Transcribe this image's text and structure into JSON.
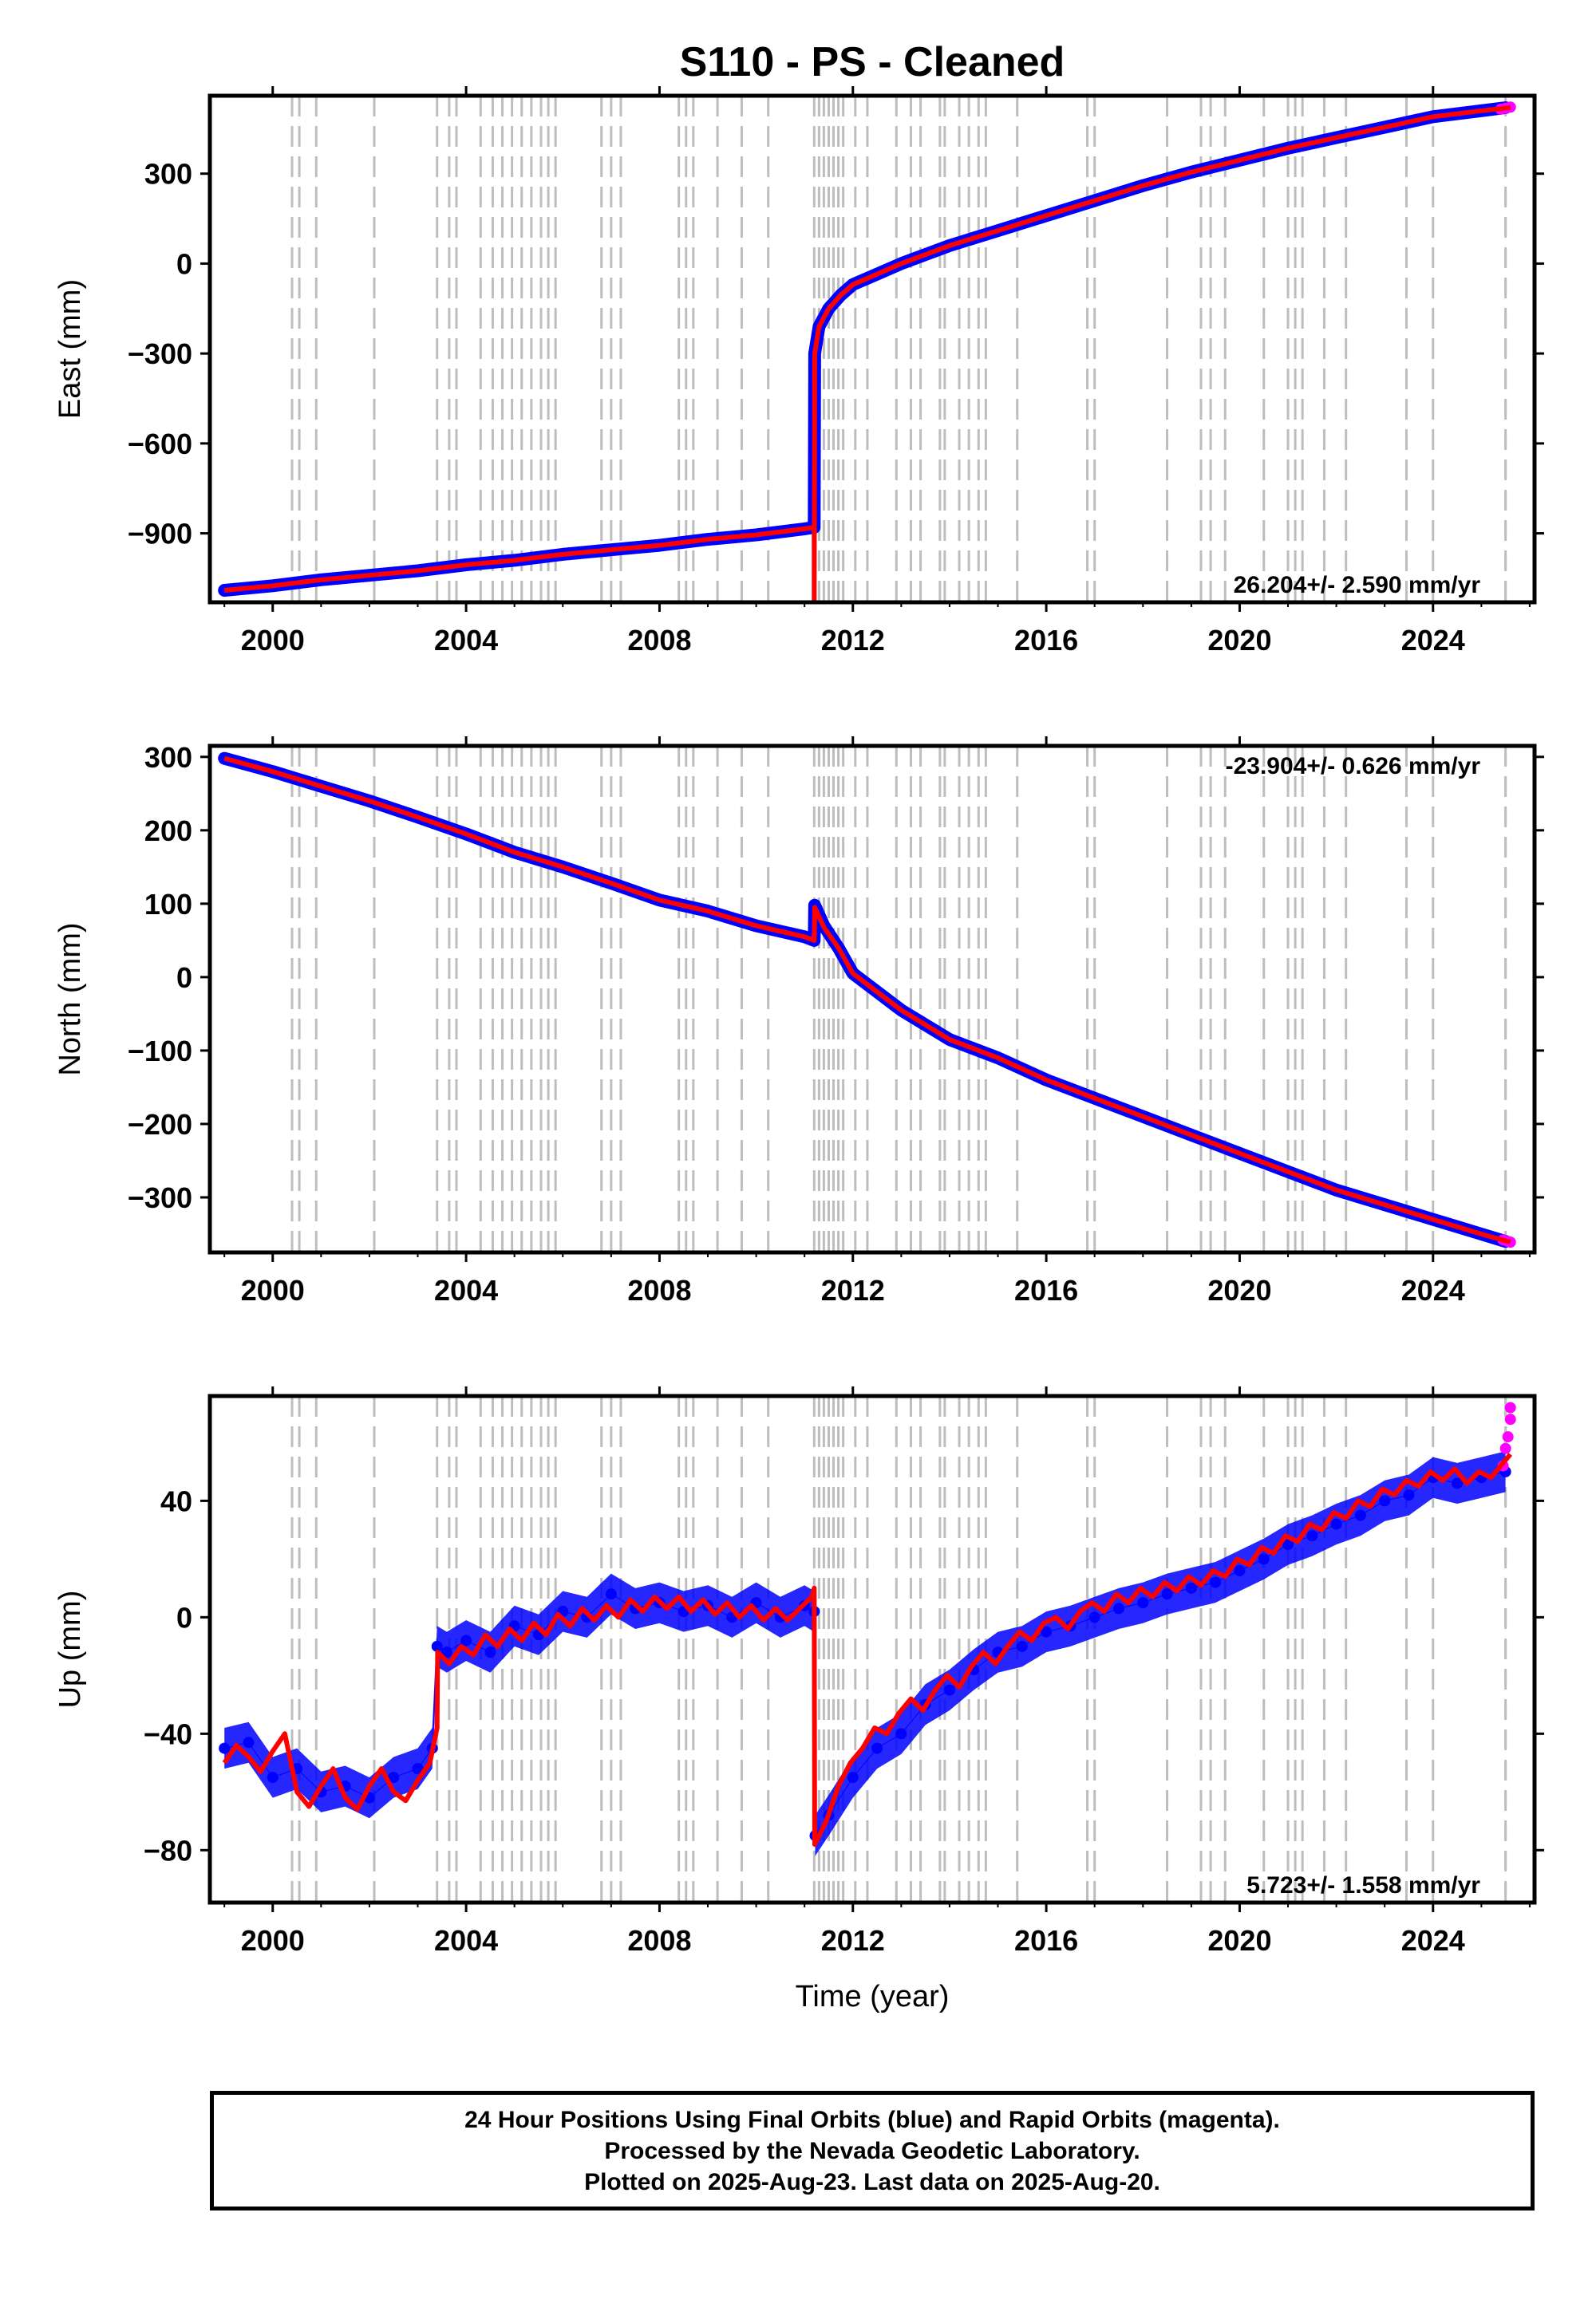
{
  "chart_data": {
    "type": "scatter",
    "title": "S110  - PS - Cleaned",
    "xlabel": "Time (year)",
    "xlim": [
      1998.7,
      2026.1
    ],
    "x_ticks": [
      2000,
      2004,
      2008,
      2012,
      2016,
      2020,
      2024
    ],
    "x_tick_labels": [
      "2000",
      "2004",
      "2008",
      "2012",
      "2016",
      "2020",
      "2024"
    ],
    "event_lines": [
      2000.4,
      2000.55,
      2000.9,
      2002.1,
      2003.4,
      2003.65,
      2003.8,
      2004.3,
      2004.55,
      2004.75,
      2004.95,
      2005.15,
      2005.35,
      2005.55,
      2005.7,
      2005.85,
      2006.8,
      2007.0,
      2007.2,
      2008.4,
      2008.55,
      2008.7,
      2009.2,
      2009.7,
      2010.25,
      2011.2,
      2011.3,
      2011.4,
      2011.5,
      2011.6,
      2011.7,
      2011.8,
      2012.05,
      2012.3,
      2012.9,
      2013.2,
      2013.4,
      2013.8,
      2013.9,
      2014.2,
      2014.4,
      2014.6,
      2014.75,
      2015.4,
      2016.85,
      2017.0,
      2018.5,
      2019.2,
      2019.4,
      2019.7,
      2020.5,
      2021.0,
      2021.15,
      2021.3,
      2021.75,
      2022.2,
      2023.45,
      2024.0,
      2025.5
    ],
    "panels": [
      {
        "name": "east",
        "ylabel": "East (mm)",
        "ylim": [
          -1130,
          560
        ],
        "y_ticks": [
          -900,
          -600,
          -300,
          0,
          300
        ],
        "y_tick_labels": [
          "−900",
          "−600",
          "−300",
          "0",
          "300"
        ],
        "rate": "26.204+/- 2.590 mm/yr",
        "rate_position": "bottom-right",
        "series": [
          {
            "name": "Final Orbits",
            "color": "#0000ff",
            "x": [
              1999.0,
              2000.0,
              2001.0,
              2002.0,
              2003.0,
              2004.0,
              2005.0,
              2006.0,
              2007.0,
              2008.0,
              2009.0,
              2010.0,
              2011.0,
              2011.2,
              2011.21,
              2011.3,
              2011.5,
              2011.75,
              2012.0,
              2012.5,
              2013.0,
              2014.0,
              2015.0,
              2016.0,
              2017.0,
              2018.0,
              2019.0,
              2020.0,
              2021.0,
              2022.0,
              2023.0,
              2024.0,
              2025.0,
              2025.5
            ],
            "y": [
              -1090,
              -1075,
              -1055,
              -1040,
              -1025,
              -1005,
              -990,
              -970,
              -955,
              -940,
              -920,
              -905,
              -885,
              -880,
              -300,
              -210,
              -150,
              -105,
              -70,
              -35,
              0,
              60,
              110,
              160,
              210,
              260,
              305,
              345,
              385,
              420,
              455,
              490,
              510,
              520
            ]
          },
          {
            "name": "Rapid Orbits",
            "color": "#ff00ff",
            "x": [
              2025.4,
              2025.5,
              2025.6
            ],
            "y": [
              515,
              518,
              522
            ]
          },
          {
            "name": "Model",
            "color": "#ff0000",
            "x": [
              1999.0,
              2000.0,
              2001.0,
              2002.0,
              2003.0,
              2004.0,
              2005.0,
              2006.0,
              2007.0,
              2008.0,
              2009.0,
              2010.0,
              2011.0,
              2011.2,
              2011.2,
              2011.21,
              2011.3,
              2011.5,
              2011.75,
              2012.0,
              2012.5,
              2013.0,
              2014.0,
              2015.0,
              2016.0,
              2017.0,
              2018.0,
              2019.0,
              2020.0,
              2021.0,
              2022.0,
              2023.0,
              2024.0,
              2025.0,
              2025.6
            ],
            "y": [
              -1090,
              -1075,
              -1055,
              -1040,
              -1025,
              -1005,
              -990,
              -970,
              -955,
              -940,
              -920,
              -905,
              -885,
              -880,
              -1130,
              -300,
              -210,
              -150,
              -105,
              -70,
              -35,
              0,
              60,
              110,
              160,
              210,
              260,
              305,
              345,
              385,
              420,
              455,
              490,
              510,
              520
            ]
          }
        ]
      },
      {
        "name": "north",
        "ylabel": "North (mm)",
        "ylim": [
          -375,
          315
        ],
        "y_ticks": [
          -300,
          -200,
          -100,
          0,
          100,
          200,
          300
        ],
        "y_tick_labels": [
          "−300",
          "−200",
          "−100",
          "0",
          "100",
          "200",
          "300"
        ],
        "rate": "-23.904+/- 0.626 mm/yr",
        "rate_position": "top-right",
        "series": [
          {
            "name": "Final Orbits",
            "color": "#0000ff",
            "x": [
              1999.0,
              2000.0,
              2001.0,
              2002.0,
              2003.0,
              2004.0,
              2005.0,
              2006.0,
              2007.0,
              2008.0,
              2009.0,
              2010.0,
              2011.0,
              2011.2,
              2011.21,
              2011.4,
              2011.7,
              2012.0,
              2013.0,
              2014.0,
              2015.0,
              2016.0,
              2017.0,
              2018.0,
              2019.0,
              2020.0,
              2021.0,
              2022.0,
              2023.0,
              2024.0,
              2025.0,
              2025.5
            ],
            "y": [
              298,
              280,
              260,
              240,
              218,
              195,
              170,
              150,
              128,
              105,
              90,
              70,
              55,
              50,
              98,
              70,
              40,
              5,
              -45,
              -85,
              -110,
              -140,
              -165,
              -190,
              -215,
              -240,
              -265,
              -290,
              -310,
              -330,
              -350,
              -360
            ]
          },
          {
            "name": "Rapid Orbits",
            "color": "#ff00ff",
            "x": [
              2025.45,
              2025.55,
              2025.6
            ],
            "y": [
              -358,
              -360,
              -361
            ]
          },
          {
            "name": "Model",
            "color": "#ff0000",
            "x": [
              1999.0,
              2000.0,
              2001.0,
              2002.0,
              2003.0,
              2004.0,
              2005.0,
              2006.0,
              2007.0,
              2008.0,
              2009.0,
              2010.0,
              2011.0,
              2011.2,
              2011.21,
              2011.4,
              2011.7,
              2012.0,
              2013.0,
              2014.0,
              2015.0,
              2016.0,
              2017.0,
              2018.0,
              2019.0,
              2020.0,
              2021.0,
              2022.0,
              2023.0,
              2024.0,
              2025.0,
              2025.6
            ],
            "y": [
              298,
              280,
              260,
              240,
              218,
              195,
              170,
              150,
              128,
              105,
              90,
              70,
              55,
              50,
              95,
              68,
              40,
              5,
              -45,
              -85,
              -110,
              -140,
              -165,
              -190,
              -215,
              -240,
              -265,
              -290,
              -310,
              -330,
              -350,
              -361
            ]
          }
        ]
      },
      {
        "name": "up",
        "ylabel": "Up (mm)",
        "ylim": [
          -98,
          76
        ],
        "y_ticks": [
          -80,
          -40,
          0,
          40
        ],
        "y_tick_labels": [
          "−80",
          "−40",
          "0",
          "40"
        ],
        "rate": "5.723+/- 1.558 mm/yr",
        "rate_position": "bottom-right",
        "series": [
          {
            "name": "Final Orbits",
            "color": "#0000ff",
            "x": [
              1999.0,
              1999.5,
              2000.0,
              2000.5,
              2001.0,
              2001.5,
              2002.0,
              2002.5,
              2003.0,
              2003.3,
              2003.4,
              2003.6,
              2004.0,
              2004.5,
              2005.0,
              2005.5,
              2006.0,
              2006.5,
              2007.0,
              2007.5,
              2008.0,
              2008.5,
              2009.0,
              2009.5,
              2010.0,
              2010.5,
              2011.0,
              2011.2,
              2011.22,
              2011.5,
              2012.0,
              2012.5,
              2013.0,
              2013.5,
              2014.0,
              2014.5,
              2015.0,
              2015.5,
              2016.0,
              2016.5,
              2017.0,
              2017.5,
              2018.0,
              2018.5,
              2019.0,
              2019.5,
              2020.0,
              2020.5,
              2021.0,
              2021.5,
              2022.0,
              2022.5,
              2023.0,
              2023.5,
              2024.0,
              2024.5,
              2025.0,
              2025.5
            ],
            "y": [
              -45,
              -43,
              -55,
              -52,
              -60,
              -58,
              -62,
              -55,
              -52,
              -45,
              -10,
              -12,
              -8,
              -12,
              -3,
              -6,
              2,
              0,
              8,
              3,
              5,
              2,
              4,
              0,
              5,
              0,
              4,
              2,
              -75,
              -68,
              -55,
              -45,
              -40,
              -30,
              -25,
              -18,
              -12,
              -10,
              -5,
              -3,
              0,
              3,
              5,
              8,
              10,
              12,
              16,
              20,
              25,
              28,
              32,
              35,
              40,
              42,
              48,
              46,
              48,
              50
            ]
          },
          {
            "name": "Rapid Orbits",
            "color": "#ff00ff",
            "x": [
              2025.45,
              2025.5,
              2025.55,
              2025.6,
              2025.6
            ],
            "y": [
              52,
              58,
              62,
              68,
              72
            ]
          },
          {
            "name": "Model",
            "color": "#ff0000",
            "x": [
              1999.0,
              1999.25,
              1999.5,
              1999.75,
              2000.0,
              2000.25,
              2000.5,
              2000.75,
              2001.0,
              2001.25,
              2001.5,
              2001.75,
              2002.0,
              2002.25,
              2002.5,
              2002.75,
              2003.0,
              2003.25,
              2003.4,
              2003.41,
              2003.65,
              2003.9,
              2004.15,
              2004.4,
              2004.65,
              2004.9,
              2005.15,
              2005.4,
              2005.65,
              2005.9,
              2006.15,
              2006.4,
              2006.65,
              2006.9,
              2007.15,
              2007.4,
              2007.65,
              2007.9,
              2008.15,
              2008.4,
              2008.65,
              2008.9,
              2009.15,
              2009.4,
              2009.65,
              2009.9,
              2010.15,
              2010.4,
              2010.65,
              2010.9,
              2011.15,
              2011.2,
              2011.21,
              2011.45,
              2011.7,
              2011.95,
              2012.2,
              2012.45,
              2012.7,
              2012.95,
              2013.2,
              2013.45,
              2013.7,
              2013.95,
              2014.2,
              2014.45,
              2014.7,
              2014.95,
              2015.2,
              2015.45,
              2015.7,
              2015.95,
              2016.2,
              2016.45,
              2016.7,
              2016.95,
              2017.2,
              2017.45,
              2017.7,
              2017.95,
              2018.2,
              2018.45,
              2018.7,
              2018.95,
              2019.2,
              2019.45,
              2019.7,
              2019.95,
              2020.2,
              2020.45,
              2020.7,
              2020.95,
              2021.2,
              2021.45,
              2021.7,
              2021.95,
              2022.2,
              2022.45,
              2022.7,
              2022.95,
              2023.2,
              2023.45,
              2023.7,
              2023.95,
              2024.2,
              2024.45,
              2024.7,
              2024.95,
              2025.2,
              2025.6
            ],
            "y": [
              -50,
              -44,
              -48,
              -53,
              -46,
              -40,
              -60,
              -65,
              -58,
              -52,
              -62,
              -66,
              -58,
              -52,
              -60,
              -63,
              -56,
              -50,
              -38,
              -12,
              -16,
              -10,
              -13,
              -6,
              -10,
              -4,
              -8,
              -2,
              -6,
              1,
              -3,
              3,
              -1,
              4,
              0,
              6,
              2,
              7,
              3,
              7,
              2,
              6,
              1,
              5,
              0,
              4,
              -1,
              3,
              -1,
              3,
              7,
              10,
              -78,
              -70,
              -58,
              -50,
              -45,
              -38,
              -40,
              -33,
              -28,
              -32,
              -25,
              -20,
              -24,
              -17,
              -12,
              -16,
              -10,
              -5,
              -8,
              -2,
              0,
              -4,
              2,
              5,
              2,
              8,
              5,
              10,
              7,
              12,
              9,
              14,
              11,
              16,
              14,
              20,
              18,
              24,
              22,
              28,
              26,
              32,
              30,
              36,
              34,
              40,
              38,
              44,
              42,
              47,
              45,
              50,
              47,
              51,
              46,
              50,
              48,
              56
            ]
          }
        ]
      }
    ]
  },
  "footer": {
    "line1": "24 Hour Positions Using Final Orbits (blue) and Rapid Orbits (magenta).",
    "line2": "Processed by the Nevada Geodetic Laboratory.",
    "line3": "Plotted on 2025-Aug-23. Last data on 2025-Aug-20."
  }
}
